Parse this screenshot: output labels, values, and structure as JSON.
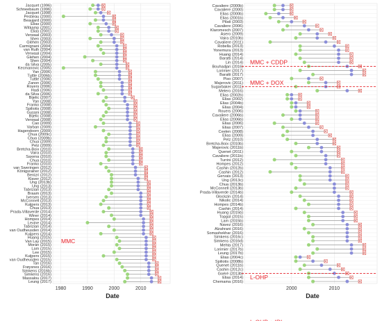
{
  "chart_data": [
    {
      "type": "scatter",
      "xlabel": "Date",
      "xticks": [
        1980,
        1990,
        2000,
        2010
      ],
      "xlim": [
        1977,
        2021
      ],
      "group_labels": [
        {
          "text": "MMC",
          "row": 64
        }
      ],
      "separators": [],
      "rows": [
        {
          "label": "Jacquet (1996)",
          "g": 1992,
          "b": 1994,
          "x": 1996
        },
        {
          "label": "Schneebaum (1996)",
          "g": 1991,
          "b": 1994,
          "x": 1996
        },
        {
          "label": "Jacquet (1998)",
          "g": 1993,
          "b": 1995,
          "x": 1998
        },
        {
          "label": "Pestieau (2000)",
          "g": 1981,
          "b": 1996,
          "x": 2000
        },
        {
          "label": "Beaujard (2000)",
          "g": 1993,
          "b": 1996,
          "x": 2000
        },
        {
          "label": "Elias (2000)",
          "g": 1991,
          "b": 1997,
          "x": 2000
        },
        {
          "label": "Witkamp (2001)",
          "g": 1994,
          "b": 1998,
          "x": 2001
        },
        {
          "label": "Elias (2001)",
          "g": 1994,
          "b": 1998,
          "x": 2001
        },
        {
          "label": "Verwaal (2003)",
          "g": 1995,
          "b": 1999,
          "x": 2003
        },
        {
          "label": "Shen (2003)",
          "g": 1991,
          "b": 2000,
          "x": 2003
        },
        {
          "label": "Glehen (2003)",
          "g": 1995,
          "b": 2000,
          "x": 2003
        },
        {
          "label": "Carmignani (2004)",
          "g": 1994,
          "b": 2001,
          "x": 2004
        },
        {
          "label": "van Ruth (2004)",
          "g": 1995,
          "b": 2001,
          "x": 2004
        },
        {
          "label": "Verwaal (2004)",
          "g": 1996,
          "b": 2001,
          "x": 2004
        },
        {
          "label": "Glehen (2004)",
          "g": 1989,
          "b": 2001,
          "x": 2004
        },
        {
          "label": "Shen (2004)",
          "g": 1992,
          "b": 2001,
          "x": 2004
        },
        {
          "label": "da Silva (2005)",
          "g": 1995,
          "b": 2001,
          "x": 2005
        },
        {
          "label": "Kecmanovic (2005)",
          "g": 1981,
          "b": 2001,
          "x": 2005
        },
        {
          "label": "Yan (2006)",
          "g": 1993,
          "b": 2002,
          "x": 2006
        },
        {
          "label": "Tuttle (2006b)",
          "g": 1993,
          "b": 2002,
          "x": 2006
        },
        {
          "label": "Tuttle (2006)",
          "g": 1994,
          "b": 2002,
          "x": 2006
        },
        {
          "label": "Zanon (2006)",
          "g": 1995,
          "b": 2003,
          "x": 2006
        },
        {
          "label": "Royers (2006)",
          "g": 1995,
          "b": 2003,
          "x": 2006
        },
        {
          "label": "Hadi (2006)",
          "g": 1996,
          "b": 2003,
          "x": 2006
        },
        {
          "label": "da Silva (2006)",
          "g": 1994,
          "b": 2003,
          "x": 2006
        },
        {
          "label": "Bijelic (2007)",
          "g": 1997,
          "b": 2004,
          "x": 2007
        },
        {
          "label": "Yan (2008)",
          "g": 1996,
          "b": 2004,
          "x": 2008
        },
        {
          "label": "Franko (2008)",
          "g": 1997,
          "b": 2005,
          "x": 2008
        },
        {
          "label": "Spiliotis (2008)",
          "g": 1998,
          "b": 2005,
          "x": 2008
        },
        {
          "label": "Gusani (2008)",
          "g": 1997,
          "b": 2005,
          "x": 2008
        },
        {
          "label": "Bijelic (2008)",
          "g": 1996,
          "b": 2005,
          "x": 2008
        },
        {
          "label": "Verwaal (2008)",
          "g": 1995,
          "b": 2005,
          "x": 2008
        },
        {
          "label": "Cao (2009)",
          "g": 1996,
          "b": 2006,
          "x": 2009
        },
        {
          "label": "Varban (2009)",
          "g": 1993,
          "b": 2006,
          "x": 2009
        },
        {
          "label": "Hagendoorn (2009)",
          "g": 1996,
          "b": 2006,
          "x": 2009
        },
        {
          "label": "Chua (2009c)",
          "g": 1998,
          "b": 2006,
          "x": 2009
        },
        {
          "label": "Chua (2009b)",
          "g": 1997,
          "b": 2006,
          "x": 2009
        },
        {
          "label": "Chua (2009)",
          "g": 1997,
          "b": 2006,
          "x": 2009
        },
        {
          "label": "Pelz (2009)",
          "g": 1996,
          "b": 2006,
          "x": 2009
        },
        {
          "label": "Bretcha-Boix (2010)",
          "g": 1998,
          "b": 2007,
          "x": 2010
        },
        {
          "label": "Vaira (2010)",
          "g": 1997,
          "b": 2007,
          "x": 2010
        },
        {
          "label": "Saxena (2010)",
          "g": 1997,
          "b": 2007,
          "x": 2010
        },
        {
          "label": "Chua (2010)",
          "g": 1998,
          "b": 2007,
          "x": 2010
        },
        {
          "label": "Franko (2010)",
          "g": 1995,
          "b": 2007,
          "x": 2010
        },
        {
          "label": "van Sweringen (2012)",
          "g": 1997,
          "b": 2008,
          "x": 2012
        },
        {
          "label": "Königsrainer (2012)",
          "g": 1998,
          "b": 2008,
          "x": 2012
        },
        {
          "label": "Benizri (2012)",
          "g": 1999,
          "b": 2008,
          "x": 2012
        },
        {
          "label": "Klaver (2012)",
          "g": 1999,
          "b": 2009,
          "x": 2012
        },
        {
          "label": "Ung (2013b)",
          "g": 1999,
          "b": 2009,
          "x": 2013
        },
        {
          "label": "Ung (2013)",
          "g": 1999,
          "b": 2009,
          "x": 2013
        },
        {
          "label": "Tabrizian (2013)",
          "g": 1998,
          "b": 2009,
          "x": 2013
        },
        {
          "label": "Braam (2013)",
          "g": 1999,
          "b": 2010,
          "x": 2013
        },
        {
          "label": "Iversen (2013)",
          "g": 1997,
          "b": 2010,
          "x": 2013
        },
        {
          "label": "McConnell (2013)",
          "g": 1996,
          "b": 2010,
          "x": 2013
        },
        {
          "label": "Kuijpers (2013)",
          "g": 1995,
          "b": 2010,
          "x": 2013
        },
        {
          "label": "Chua (2013)",
          "g": 1998,
          "b": 2010,
          "x": 2013
        },
        {
          "label": "Prada-Villaverde (2014)",
          "g": 1996,
          "b": 2010,
          "x": 2014
        },
        {
          "label": "Winer (2014)",
          "g": 1999,
          "b": 2010,
          "x": 2014
        },
        {
          "label": "Hompes (2014)",
          "g": 2000,
          "b": 2011,
          "x": 2014
        },
        {
          "label": "Levine (2014)",
          "g": 1990,
          "b": 2011,
          "x": 2014
        },
        {
          "label": "Tabrizian (2014)",
          "g": 1998,
          "b": 2011,
          "x": 2014
        },
        {
          "label": "van Oudheusden (2014)",
          "g": 2000,
          "b": 2011,
          "x": 2014
        },
        {
          "label": "Kuijpers (2014)",
          "g": 1995,
          "b": 2011,
          "x": 2014
        },
        {
          "label": "Huang (2015)",
          "g": 2001,
          "b": 2012,
          "x": 2015
        },
        {
          "label": "Van Lay (2015)",
          "g": 2002,
          "b": 2012,
          "x": 2015
        },
        {
          "label": "Morán (2015)",
          "g": 2001,
          "b": 2012,
          "x": 2015
        },
        {
          "label": "Lam (2015)",
          "g": 2002,
          "b": 2012,
          "x": 2015
        },
        {
          "label": "Lee (2015)",
          "g": 2000,
          "b": 2012,
          "x": 2015
        },
        {
          "label": "Kuijpers (2015)",
          "g": 1996,
          "b": 2012,
          "x": 2015
        },
        {
          "label": "van Oudheusden (2015)",
          "g": 2001,
          "b": 2012,
          "x": 2015
        },
        {
          "label": "Tan (2016)",
          "g": 2002,
          "b": 2013,
          "x": 2016
        },
        {
          "label": "Frøysnes (2016)",
          "g": 2003,
          "b": 2013,
          "x": 2016
        },
        {
          "label": "Simkens (2016b)",
          "g": 2004,
          "b": 2013,
          "x": 2016
        },
        {
          "label": "Simkens (2016)",
          "g": 2005,
          "b": 2013,
          "x": 2016
        },
        {
          "label": "Massalou (2017)",
          "g": 2005,
          "b": 2014,
          "x": 2017
        },
        {
          "label": "Leung (2017)",
          "g": 2004,
          "b": 2014,
          "x": 2017
        }
      ]
    },
    {
      "type": "scatter",
      "xlabel": "Date",
      "xticks": [
        2000,
        2010
      ],
      "xlim": [
        1989,
        2020
      ],
      "group_labels": [
        {
          "text": "MMC + CDDP",
          "row": 14
        },
        {
          "text": "MMC + DOX",
          "row": 19
        },
        {
          "text": "L-OHP",
          "row": 67
        },
        {
          "text": "L-OHP + IRI",
          "row": 78
        }
      ],
      "separators": [
        15.5,
        20.5,
        66.5
      ],
      "rows": [
        {
          "label": "Cavaliere (2000b)",
          "g": 1996,
          "b": 1998,
          "x": 2000
        },
        {
          "label": "Cavaliere (2000)",
          "g": 1996,
          "b": 1998,
          "x": 2000
        },
        {
          "label": "Elias (2000b)",
          "g": 1994,
          "b": 1997,
          "x": 2000
        },
        {
          "label": "Elias (2001b)",
          "g": 1995,
          "b": 1998,
          "x": 2001
        },
        {
          "label": "Pilati (2003)",
          "g": 1997,
          "b": 2000,
          "x": 2003
        },
        {
          "label": "Cavaliere (2006)",
          "g": 1999,
          "b": 2003,
          "x": 2006
        },
        {
          "label": "Klaromesch (2007)",
          "g": 1998,
          "b": 2004,
          "x": 2007
        },
        {
          "label": "Asero (2009)",
          "g": 2002,
          "b": 2006,
          "x": 2009
        },
        {
          "label": "Vaira (2010b)",
          "g": 2001,
          "b": 2006,
          "x": 2010
        },
        {
          "label": "Cavaliere (2011)",
          "g": 1995,
          "b": 2008,
          "x": 2011
        },
        {
          "label": "Robella (2013)",
          "g": 2002,
          "b": 2010,
          "x": 2013
        },
        {
          "label": "Yonemura (2013)",
          "g": 2002,
          "b": 2011,
          "x": 2013
        },
        {
          "label": "Huang (2014)",
          "g": 2001,
          "b": 2011,
          "x": 2014
        },
        {
          "label": "Baratti (2014)",
          "g": 2002,
          "b": 2011,
          "x": 2014
        },
        {
          "label": "Lin (2014)",
          "g": 2003,
          "b": 2011,
          "x": 2014
        },
        {
          "label": "Bouhadjari (2016)",
          "g": 2004,
          "b": 2013,
          "x": 2016
        },
        {
          "label": "Lorimier (2017)",
          "g": 2002,
          "b": 2014,
          "x": 2017
        },
        {
          "label": "Baratti (2017)",
          "g": 2005,
          "b": 2014,
          "x": 2017
        },
        {
          "label": "Piso (2007)",
          "g": 2000,
          "b": 2004,
          "x": 2007
        },
        {
          "label": "Majerovic (2011)",
          "g": 2004,
          "b": 2008,
          "x": 2011
        },
        {
          "label": "Sugarbaker (2011)",
          "g": 2001,
          "b": 2008,
          "x": 2011
        },
        {
          "label": "Melero (2016)",
          "g": 2006,
          "b": 2013,
          "x": 2016
        },
        {
          "label": "Elias (2002b)",
          "g": 1999,
          "b": 2000,
          "x": 2002
        },
        {
          "label": "Elias (2002)",
          "g": 1999,
          "b": 2000,
          "x": 2002
        },
        {
          "label": "Elias (2004b)",
          "g": 2000,
          "b": 2001,
          "x": 2004
        },
        {
          "label": "Elias (2004)",
          "g": 2000,
          "b": 2001,
          "x": 2004
        },
        {
          "label": "Rouers (2006)",
          "g": 2001,
          "b": 2002,
          "x": 2006
        },
        {
          "label": "Cavaliere (2006b)",
          "g": 1998,
          "b": 2002,
          "x": 2006
        },
        {
          "label": "Elias (2006b)",
          "g": 2000,
          "b": 2002,
          "x": 2006
        },
        {
          "label": "Elias (2006)",
          "g": 1996,
          "b": 2003,
          "x": 2006
        },
        {
          "label": "Elias (2007)",
          "g": 1998,
          "b": 2004,
          "x": 2007
        },
        {
          "label": "Ceelen (2008)",
          "g": 1999,
          "b": 2005,
          "x": 2008
        },
        {
          "label": "Elias (2009)",
          "g": 1998,
          "b": 2005,
          "x": 2009
        },
        {
          "label": "Pelz (2010)",
          "g": 1999,
          "b": 2006,
          "x": 2010
        },
        {
          "label": "Bretcha-Boix (2010b)",
          "g": 2001,
          "b": 2006,
          "x": 2010
        },
        {
          "label": "Majerovic (2011b)",
          "g": 2004,
          "b": 2007,
          "x": 2011
        },
        {
          "label": "Quenet (2011)",
          "g": 2000,
          "b": 2007,
          "x": 2011
        },
        {
          "label": "Cavaliere (2011b)",
          "g": 2001,
          "b": 2008,
          "x": 2011
        },
        {
          "label": "Turrini (2012)",
          "g": 1996,
          "b": 2008,
          "x": 2012
        },
        {
          "label": "Hompes (2012)",
          "g": 2000,
          "b": 2008,
          "x": 2012
        },
        {
          "label": "Cashin (2012b)",
          "g": 2001,
          "b": 2009,
          "x": 2012
        },
        {
          "label": "Cashin (2012)",
          "g": 1995,
          "b": 2009,
          "x": 2012
        },
        {
          "label": "Gervais (2013)",
          "g": 2002,
          "b": 2009,
          "x": 2013
        },
        {
          "label": "Ung (2013c)",
          "g": 2002,
          "b": 2009,
          "x": 2013
        },
        {
          "label": "Chua (2013b)",
          "g": 2003,
          "b": 2010,
          "x": 2013
        },
        {
          "label": "McConnell (2013b)",
          "g": 2001,
          "b": 2010,
          "x": 2013
        },
        {
          "label": "Prada-Villaverde (2014b)",
          "g": 2000,
          "b": 2010,
          "x": 2014
        },
        {
          "label": "Glockzin (2014)",
          "g": 2002,
          "b": 2011,
          "x": 2014
        },
        {
          "label": "Nikolic (2014)",
          "g": 2003,
          "b": 2011,
          "x": 2014
        },
        {
          "label": "Hompes (2014b)",
          "g": 2004,
          "b": 2011,
          "x": 2014
        },
        {
          "label": "Cashin (2014)",
          "g": 2001,
          "b": 2011,
          "x": 2014
        },
        {
          "label": "Huang (2015b)",
          "g": 2003,
          "b": 2012,
          "x": 2015
        },
        {
          "label": "Topgül (2015)",
          "g": 2004,
          "b": 2012,
          "x": 2015
        },
        {
          "label": "Lam (2015b)",
          "g": 2004,
          "b": 2012,
          "x": 2015
        },
        {
          "label": "Navez (2016)",
          "g": 2005,
          "b": 2013,
          "x": 2016
        },
        {
          "label": "Alzahrani (2016)",
          "g": 2003,
          "b": 2013,
          "x": 2016
        },
        {
          "label": "Somashekhar (2016)",
          "g": 2004,
          "b": 2013,
          "x": 2016
        },
        {
          "label": "Simkens (2016c)",
          "g": 2005,
          "b": 2013,
          "x": 2016
        },
        {
          "label": "Simkens (2016d)",
          "g": 2005,
          "b": 2013,
          "x": 2016
        },
        {
          "label": "Mehta (2017)",
          "g": 2004,
          "b": 2014,
          "x": 2017
        },
        {
          "label": "Lorimier (2017b)",
          "g": 2006,
          "b": 2014,
          "x": 2017
        },
        {
          "label": "Leung (2017b)",
          "g": 2005,
          "b": 2014,
          "x": 2017
        },
        {
          "label": "Elias (2004c)",
          "g": 2001,
          "b": 2002,
          "x": 2004
        },
        {
          "label": "Spiliotis (2008b)",
          "g": 2001,
          "b": 2005,
          "x": 2008
        },
        {
          "label": "Quenet (2011b)",
          "g": 2003,
          "b": 2007,
          "x": 2011
        },
        {
          "label": "Cashin (2012c)",
          "g": 2002,
          "b": 2009,
          "x": 2012
        },
        {
          "label": "Goéré (2013b)",
          "g": 2004,
          "b": 2010,
          "x": 2013
        },
        {
          "label": "Elias (2014)",
          "g": 2004,
          "b": 2011,
          "x": 2014
        },
        {
          "label": "Chemama (2016)",
          "g": 2005,
          "b": 2013,
          "x": 2016
        }
      ]
    }
  ]
}
